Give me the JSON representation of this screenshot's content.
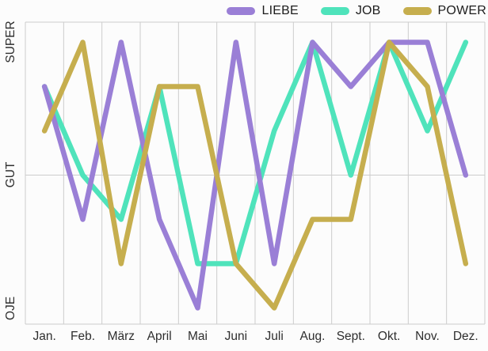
{
  "chart_data": {
    "type": "line",
    "categories": [
      "Jan.",
      "Feb.",
      "März",
      "April",
      "Mai",
      "Juni",
      "Juli",
      "Aug.",
      "Sept.",
      "Okt.",
      "Nov.",
      "Dez."
    ],
    "series": [
      {
        "name": "LIEBE",
        "color": "#9a7fd6",
        "values": [
          5,
          2,
          6,
          2,
          0,
          6,
          1,
          6,
          5,
          6,
          6,
          3
        ]
      },
      {
        "name": "JOB",
        "color": "#4fe3bb",
        "values": [
          5,
          3,
          2,
          5,
          1,
          1,
          4,
          6,
          3,
          6,
          4,
          6
        ]
      },
      {
        "name": "POWER",
        "color": "#c6ae4e",
        "values": [
          4,
          6,
          1,
          5,
          5,
          1,
          0,
          2,
          2,
          6,
          5,
          1
        ]
      }
    ],
    "draw_order": [
      "JOB",
      "LIEBE",
      "POWER"
    ],
    "y_ticks": [
      {
        "label": "OJE",
        "value": 0
      },
      {
        "label": "GUT",
        "value": 3
      },
      {
        "label": "SUPER",
        "value": 6
      }
    ],
    "ylim": [
      -0.366,
      6.455
    ],
    "grid": {
      "vertical": true,
      "horizontal_values": [
        3
      ],
      "color": "#cccccc",
      "border": true
    },
    "legend_position": "top-right",
    "line_width": 6.5
  }
}
